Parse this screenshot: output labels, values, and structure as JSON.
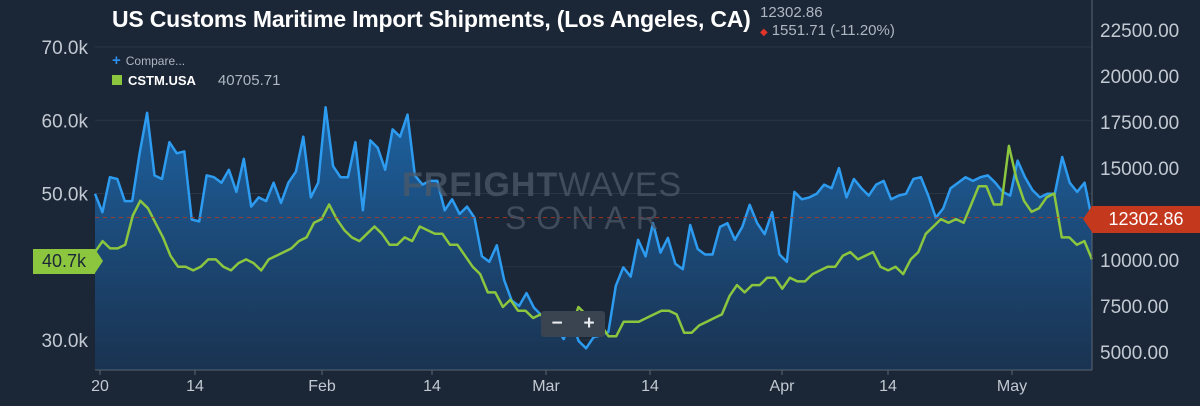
{
  "header": {
    "title": "US Customs Maritime Import Shipments, (Los Angeles, CA)",
    "last_value": "12302.86",
    "change_text": "1551.71 (-11.20%)"
  },
  "legend": {
    "compare_label": "Compare...",
    "series_label": "CSTM.USA",
    "series_value": "40705.71"
  },
  "badges": {
    "right": "12302.86",
    "left": "40.7k"
  },
  "controls": {
    "zoom_out": "−",
    "zoom_in": "+"
  },
  "watermark": {
    "brand_bold": "FREIGHT",
    "brand_thin": "WAVES",
    "product": "SONAR"
  },
  "colors": {
    "background": "#1b2636",
    "blue_series": "#2d9cf0",
    "green_series": "#8cc63f",
    "down_arrow": "#e0342a",
    "badge_right": "#c4381e"
  },
  "chart_data": {
    "type": "line",
    "title": "US Customs Maritime Import Shipments, (Los Angeles, CA)",
    "x_tick_labels": [
      "20",
      "14",
      "Feb",
      "14",
      "Mar",
      "14",
      "Apr",
      "14",
      "May"
    ],
    "left_axis": {
      "ticks": [
        "30.0k",
        "40.0k",
        "50.0k",
        "60.0k",
        "70.0k"
      ],
      "range": [
        28000,
        73000
      ]
    },
    "right_axis": {
      "ticks": [
        "5000.00",
        "7500.00",
        "10000.00",
        "12500.00",
        "15000.00",
        "17500.00",
        "20000.00",
        "22500.00"
      ],
      "range": [
        4500,
        24000
      ]
    },
    "series": [
      {
        "name": "CSTM.USA",
        "axis": "left",
        "values": [
          42000,
          43500,
          42500,
          42500,
          43000,
          47000,
          49000,
          48000,
          46000,
          44000,
          41500,
          40000,
          40000,
          39500,
          40000,
          41000,
          41000,
          40000,
          39500,
          40500,
          41000,
          40500,
          39500,
          41000,
          41500,
          42000,
          42500,
          43500,
          44000,
          46000,
          46500,
          48500,
          46500,
          45000,
          44000,
          43500,
          44500,
          45500,
          44500,
          43000,
          43000,
          44000,
          43500,
          45500,
          45000,
          44500,
          44500,
          43000,
          43000,
          41500,
          40000,
          39000,
          36500,
          36500,
          34500,
          35500,
          34000,
          34000,
          33000,
          33500,
          32500,
          32000,
          32500,
          31500,
          34500,
          33500,
          33000,
          32000,
          30500,
          30500,
          32500,
          32500,
          32500,
          33000,
          33500,
          34000,
          34000,
          33500,
          31000,
          31000,
          32000,
          32500,
          33000,
          33500,
          36000,
          37500,
          36500,
          37500,
          37500,
          38500,
          38500,
          37000,
          38500,
          38000,
          38000,
          39000,
          39500,
          40000,
          40000,
          41500,
          42000,
          41000,
          41500,
          42000,
          40000,
          39500,
          40000,
          39000,
          41000,
          42000,
          44500,
          45500,
          46500,
          46000,
          46500,
          46000,
          48500,
          51000,
          51000,
          48500,
          48500,
          56500,
          52000,
          49000,
          47500,
          48000,
          49500,
          50000,
          44000,
          44000,
          43000,
          43500,
          41000
        ]
      },
      {
        "name": "",
        "axis": "right",
        "values": [
          13600,
          12600,
          14500,
          14400,
          13200,
          13200,
          15800,
          18000,
          14600,
          14400,
          16400,
          15800,
          15900,
          12200,
          12100,
          14600,
          14500,
          14200,
          14900,
          13700,
          15500,
          12900,
          13400,
          13200,
          14200,
          13100,
          14200,
          14800,
          16700,
          13400,
          14200,
          18300,
          15100,
          14500,
          14500,
          16400,
          12700,
          16500,
          16100,
          14900,
          17100,
          16700,
          17900,
          14600,
          14100,
          14300,
          14300,
          12700,
          13300,
          12500,
          12900,
          12300,
          10200,
          9900,
          10800,
          8900,
          7800,
          7500,
          8200,
          7400,
          7000,
          6400,
          6300,
          5700,
          6800,
          5600,
          5200,
          5800,
          5900,
          6100,
          8600,
          9600,
          9100,
          11100,
          10200,
          12000,
          10400,
          11200,
          9800,
          9500,
          11900,
          10600,
          10300,
          10300,
          11800,
          12000,
          11100,
          11800,
          13000,
          12000,
          11400,
          12600,
          10300,
          9900,
          13700,
          13300,
          13400,
          13600,
          14100,
          13900,
          15000,
          13400,
          14400,
          13900,
          13500,
          14100,
          14300,
          13300,
          13500,
          13600,
          14400,
          14500,
          13500,
          12300,
          12800,
          13900,
          14200,
          14500,
          14300,
          14500,
          14600,
          14200,
          13700,
          13500,
          15400,
          14500,
          13800,
          13400,
          13600,
          13600,
          15600,
          14200,
          13700,
          14200,
          12200
        ]
      }
    ]
  }
}
